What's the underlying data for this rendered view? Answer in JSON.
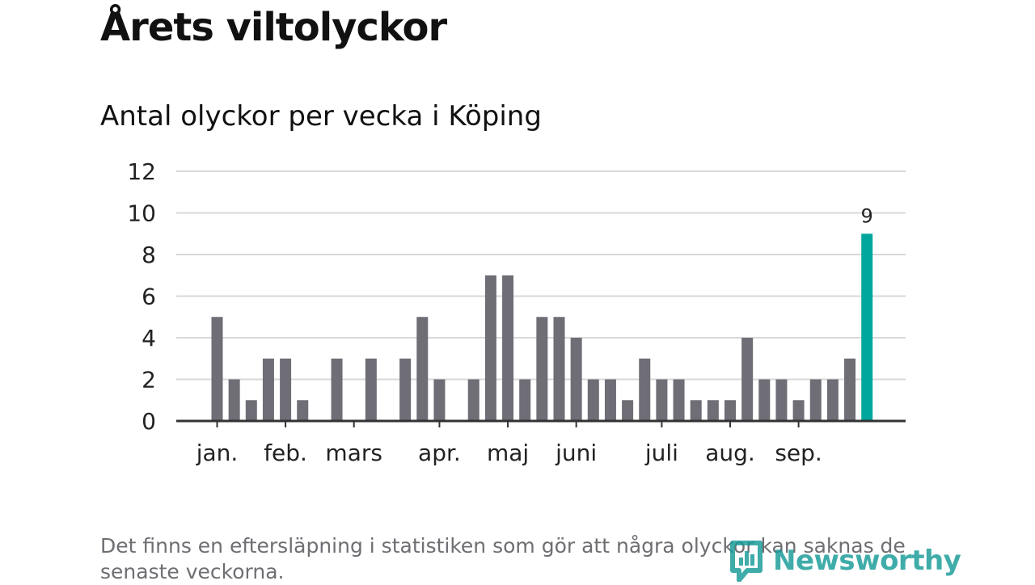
{
  "title": "Årets viltolyckor",
  "subtitle": "Antal olyckor per vecka i Köping",
  "footnote": "Det finns en eftersläpning i statistiken som gör att några olyckor kan saknas de senaste veckorna.",
  "brand": {
    "name": "Newsworthy",
    "icon": "bar-chart-speech-bubble-icon"
  },
  "colors": {
    "bar": "#6f6d75",
    "highlight": "#00a79d",
    "grid": "#d8d8d8",
    "axis": "#333333",
    "brand": "#159a97"
  },
  "chart_data": {
    "type": "bar",
    "title": "Antal olyckor per vecka i Köping",
    "xlabel": "",
    "ylabel": "",
    "ylim": [
      0,
      12
    ],
    "yticks": [
      0,
      2,
      4,
      6,
      8,
      10,
      12
    ],
    "grid": true,
    "values": [
      5,
      2,
      1,
      3,
      3,
      1,
      0,
      3,
      0,
      3,
      0,
      3,
      5,
      2,
      0,
      2,
      7,
      7,
      2,
      5,
      5,
      4,
      2,
      2,
      1,
      3,
      2,
      2,
      1,
      1,
      1,
      4,
      2,
      2,
      1,
      2,
      2,
      3,
      9
    ],
    "highlight_index": 38,
    "highlight_label": "9",
    "month_labels": [
      {
        "label": "jan.",
        "week_index": 0
      },
      {
        "label": "feb.",
        "week_index": 4
      },
      {
        "label": "mars",
        "week_index": 8
      },
      {
        "label": "apr.",
        "week_index": 13
      },
      {
        "label": "maj",
        "week_index": 17
      },
      {
        "label": "juni",
        "week_index": 21
      },
      {
        "label": "juli",
        "week_index": 26
      },
      {
        "label": "aug.",
        "week_index": 30
      },
      {
        "label": "sep.",
        "week_index": 34
      }
    ]
  }
}
